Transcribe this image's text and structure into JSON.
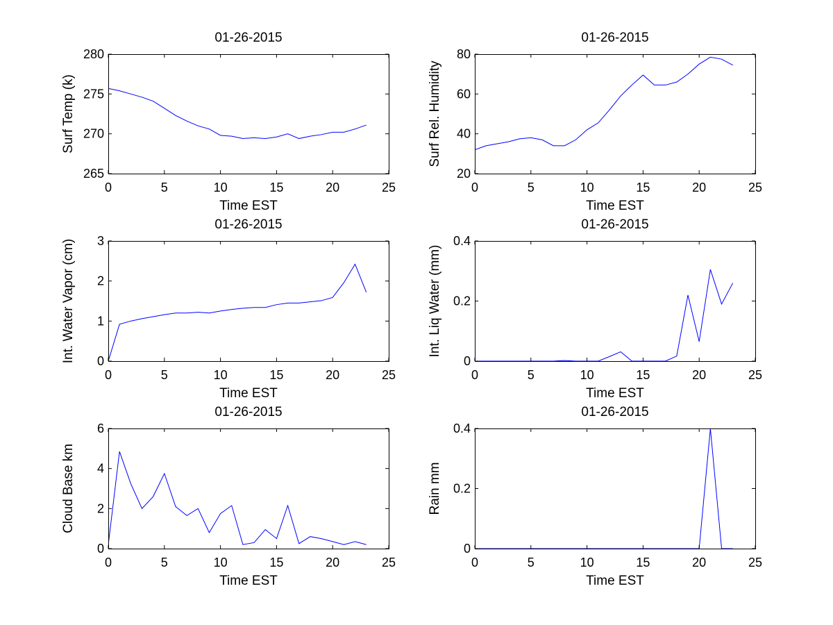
{
  "figure": {
    "background": "#ffffff",
    "line_color": "#0000ff",
    "axis_color": "#000000"
  },
  "chart_data": [
    {
      "type": "line",
      "title": "01-26-2015",
      "xlabel": "Time EST",
      "ylabel": "Surf Temp (k)",
      "xlim": [
        0,
        25
      ],
      "ylim": [
        265,
        280
      ],
      "xticks": [
        "0",
        "5",
        "10",
        "15",
        "20",
        "25"
      ],
      "yticks": [
        "265",
        "270",
        "275",
        "280"
      ],
      "x": [
        0,
        1,
        2,
        3,
        4,
        5,
        6,
        7,
        8,
        9,
        10,
        11,
        12,
        13,
        14,
        15,
        16,
        17,
        18,
        19,
        20,
        21,
        22,
        23
      ],
      "values": [
        275.7,
        275.4,
        275.0,
        274.6,
        274.1,
        273.2,
        272.3,
        271.6,
        271.0,
        270.6,
        269.8,
        269.7,
        269.4,
        269.5,
        269.4,
        269.6,
        270.0,
        269.4,
        269.7,
        269.9,
        270.2,
        270.2,
        270.6,
        271.1
      ]
    },
    {
      "type": "line",
      "title": "01-26-2015",
      "xlabel": "Time EST",
      "ylabel": "Surf Rel. Humidity",
      "xlim": [
        0,
        25
      ],
      "ylim": [
        20,
        80
      ],
      "xticks": [
        "0",
        "5",
        "10",
        "15",
        "20",
        "25"
      ],
      "yticks": [
        "20",
        "40",
        "60",
        "80"
      ],
      "x": [
        0,
        1,
        2,
        3,
        4,
        5,
        6,
        7,
        8,
        9,
        10,
        11,
        12,
        13,
        14,
        15,
        16,
        17,
        18,
        19,
        20,
        21,
        22,
        23
      ],
      "values": [
        32,
        34,
        35,
        36,
        37.5,
        38,
        37,
        34,
        34,
        37,
        42,
        45.5,
        52,
        59,
        64.5,
        69.5,
        64.5,
        64.5,
        66,
        70,
        75,
        78.5,
        77.5,
        74.5
      ]
    },
    {
      "type": "line",
      "title": "01-26-2015",
      "xlabel": "Time EST",
      "ylabel": "Int. Water Vapor (cm)",
      "xlim": [
        0,
        25
      ],
      "ylim": [
        0,
        3
      ],
      "xticks": [
        "0",
        "5",
        "10",
        "15",
        "20",
        "25"
      ],
      "yticks": [
        "0",
        "1",
        "2",
        "3"
      ],
      "x": [
        0,
        1,
        2,
        3,
        4,
        5,
        6,
        7,
        8,
        9,
        10,
        11,
        12,
        13,
        14,
        15,
        16,
        17,
        18,
        19,
        20,
        21,
        22,
        23
      ],
      "values": [
        0,
        0.92,
        1.0,
        1.06,
        1.11,
        1.16,
        1.2,
        1.2,
        1.22,
        1.2,
        1.25,
        1.29,
        1.32,
        1.34,
        1.34,
        1.41,
        1.45,
        1.45,
        1.48,
        1.51,
        1.59,
        1.96,
        2.42,
        1.72
      ]
    },
    {
      "type": "line",
      "title": "01-26-2015",
      "xlabel": "Time EST",
      "ylabel": "Int. Liq Water (mm)",
      "xlim": [
        0,
        25
      ],
      "ylim": [
        0,
        0.4
      ],
      "xticks": [
        "0",
        "5",
        "10",
        "15",
        "20",
        "25"
      ],
      "yticks": [
        "0",
        "0.2",
        "0.4"
      ],
      "x": [
        0,
        1,
        2,
        3,
        4,
        5,
        6,
        7,
        8,
        9,
        10,
        11,
        12,
        13,
        14,
        15,
        16,
        17,
        18,
        19,
        20,
        21,
        22,
        23
      ],
      "values": [
        0,
        0,
        0,
        0,
        0,
        0,
        0,
        0,
        0.002,
        0,
        0,
        0,
        0.015,
        0.031,
        0,
        0,
        0,
        0,
        0.017,
        0.22,
        0.065,
        0.305,
        0.19,
        0.26
      ]
    },
    {
      "type": "line",
      "title": "01-26-2015",
      "xlabel": "Time EST",
      "ylabel": "Cloud Base km",
      "xlim": [
        0,
        25
      ],
      "ylim": [
        0,
        6
      ],
      "xticks": [
        "0",
        "5",
        "10",
        "15",
        "20",
        "25"
      ],
      "yticks": [
        "0",
        "2",
        "4",
        "6"
      ],
      "x": [
        0,
        1,
        2,
        3,
        4,
        5,
        6,
        7,
        8,
        9,
        10,
        11,
        12,
        13,
        14,
        15,
        16,
        17,
        18,
        19,
        20,
        21,
        22,
        23
      ],
      "values": [
        0.2,
        4.85,
        3.25,
        2.0,
        2.6,
        3.75,
        2.1,
        1.65,
        2.0,
        0.8,
        1.75,
        2.15,
        0.2,
        0.3,
        0.95,
        0.5,
        2.15,
        0.25,
        0.6,
        0.5,
        0.35,
        0.2,
        0.35,
        0.2
      ]
    },
    {
      "type": "line",
      "title": "01-26-2015",
      "xlabel": "Time EST",
      "ylabel": "Rain mm",
      "xlim": [
        0,
        25
      ],
      "ylim": [
        0,
        0.4
      ],
      "xticks": [
        "0",
        "5",
        "10",
        "15",
        "20",
        "25"
      ],
      "yticks": [
        "0",
        "0.2",
        "0.4"
      ],
      "x": [
        0,
        1,
        2,
        3,
        4,
        5,
        6,
        7,
        8,
        9,
        10,
        11,
        12,
        13,
        14,
        15,
        16,
        17,
        18,
        19,
        20,
        21,
        22,
        23
      ],
      "values": [
        0,
        0,
        0,
        0,
        0,
        0,
        0,
        0,
        0,
        0,
        0,
        0,
        0,
        0,
        0,
        0,
        0,
        0,
        0,
        0,
        0,
        0.4,
        0,
        0
      ]
    }
  ]
}
